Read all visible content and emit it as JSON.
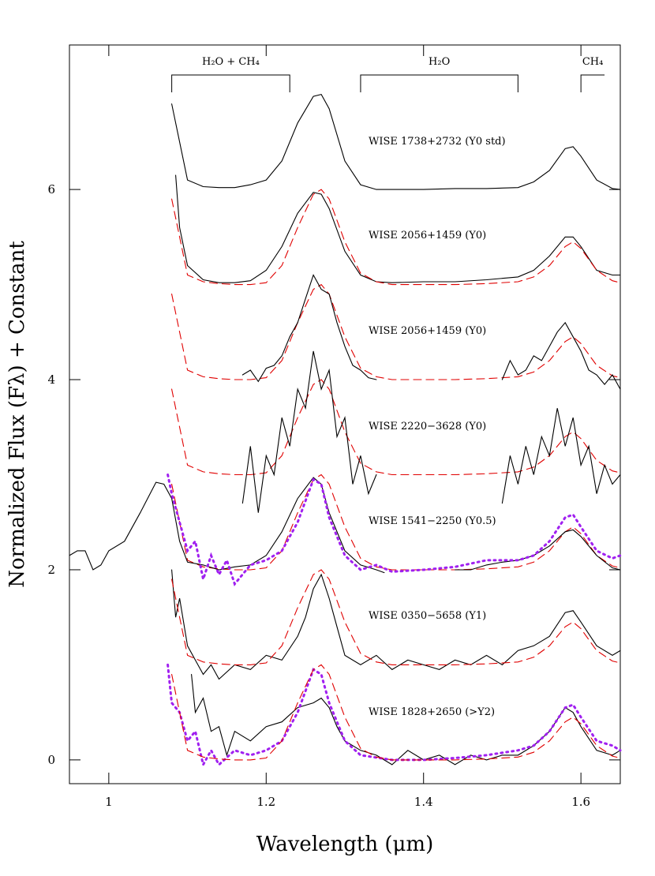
{
  "chart_data": {
    "type": "line",
    "xlabel": "Wavelength (μm)",
    "ylabel": "Normalized Flux (Fλ) + Constant",
    "xlim": [
      0.95,
      1.65
    ],
    "ylim": [
      -0.25,
      7.52
    ],
    "xticks": [
      1,
      1.2,
      1.4,
      1.6
    ],
    "yticks": [
      0,
      2,
      4,
      6
    ],
    "bands": [
      {
        "label": "H₂O + CH₄",
        "range": [
          1.08,
          1.23
        ]
      },
      {
        "label": "H₂O",
        "range": [
          1.32,
          1.52
        ]
      },
      {
        "label": "CH₄",
        "range": [
          1.6,
          1.63
        ]
      }
    ],
    "labels": [
      "WISE 1738+2732 (Y0 std)",
      "WISE 2056+1459 (Y0)",
      "WISE 2056+1459 (Y0)",
      "WISE 2220−3628 (Y0)",
      "WISE 1541−2250 (Y0.5)",
      "WISE 0350−5658 (Y1)",
      "WISE 1828+2650 (>Y2)"
    ],
    "series": [
      {
        "color": "#000000",
        "style": "solid",
        "x": [
          1.08,
          1.09,
          1.1,
          1.12,
          1.14,
          1.16,
          1.18,
          1.2,
          1.22,
          1.24,
          1.26,
          1.27,
          1.28,
          1.3,
          1.32,
          1.34,
          1.36,
          1.4,
          1.44,
          1.48,
          1.52,
          1.54,
          1.56,
          1.58,
          1.59,
          1.6,
          1.62,
          1.64,
          1.65
        ],
        "values": [
          6.9,
          6.5,
          6.1,
          6.03,
          6.02,
          6.02,
          6.05,
          6.1,
          6.3,
          6.7,
          6.98,
          7.0,
          6.85,
          6.3,
          6.05,
          6.0,
          6.0,
          6.0,
          6.01,
          6.01,
          6.02,
          6.08,
          6.2,
          6.43,
          6.45,
          6.35,
          6.1,
          6.01,
          6.0
        ]
      },
      {
        "color": "#000000",
        "style": "solid",
        "x": [
          1.085,
          1.09,
          1.1,
          1.12,
          1.14,
          1.16,
          1.18,
          1.2,
          1.22,
          1.24,
          1.26,
          1.27,
          1.28,
          1.3,
          1.32,
          1.34,
          1.36,
          1.4,
          1.44,
          1.48,
          1.52,
          1.54,
          1.56,
          1.58,
          1.59,
          1.6,
          1.62,
          1.64,
          1.65
        ],
        "values": [
          6.15,
          5.6,
          5.2,
          5.05,
          5.02,
          5.02,
          5.04,
          5.15,
          5.4,
          5.75,
          5.97,
          5.95,
          5.8,
          5.35,
          5.1,
          5.03,
          5.02,
          5.03,
          5.03,
          5.05,
          5.08,
          5.15,
          5.3,
          5.5,
          5.5,
          5.4,
          5.15,
          5.1,
          5.1
        ]
      },
      {
        "color": "#e00000",
        "style": "dashed",
        "x": [
          1.08,
          1.09,
          1.1,
          1.12,
          1.14,
          1.16,
          1.18,
          1.2,
          1.22,
          1.24,
          1.26,
          1.27,
          1.28,
          1.3,
          1.32,
          1.34,
          1.36,
          1.4,
          1.44,
          1.48,
          1.52,
          1.54,
          1.56,
          1.58,
          1.59,
          1.6,
          1.62,
          1.64,
          1.65
        ],
        "values": [
          5.9,
          5.5,
          5.1,
          5.03,
          5.01,
          5.0,
          5.0,
          5.02,
          5.2,
          5.6,
          5.95,
          6.0,
          5.9,
          5.45,
          5.12,
          5.03,
          5.0,
          5.0,
          5.0,
          5.01,
          5.03,
          5.08,
          5.2,
          5.4,
          5.45,
          5.38,
          5.15,
          5.04,
          5.02
        ]
      },
      {
        "color": "#e00000",
        "style": "dashed",
        "x": [
          1.08,
          1.09,
          1.1,
          1.12,
          1.14,
          1.16,
          1.18,
          1.2,
          1.22,
          1.24,
          1.26,
          1.27,
          1.28,
          1.3,
          1.32,
          1.34,
          1.36,
          1.4,
          1.44,
          1.48,
          1.52,
          1.54,
          1.56,
          1.58,
          1.59,
          1.6,
          1.62,
          1.64,
          1.65
        ],
        "values": [
          4.9,
          4.5,
          4.1,
          4.03,
          4.01,
          4.0,
          4.0,
          4.02,
          4.2,
          4.6,
          4.95,
          5.0,
          4.9,
          4.45,
          4.12,
          4.03,
          4.0,
          4.0,
          4.0,
          4.01,
          4.03,
          4.08,
          4.2,
          4.4,
          4.45,
          4.38,
          4.15,
          4.04,
          4.02
        ]
      },
      {
        "color": "#000000",
        "style": "solid",
        "x": [
          1.17,
          1.18,
          1.19,
          1.2,
          1.21,
          1.22,
          1.23,
          1.24,
          1.25,
          1.26,
          1.27,
          1.28,
          1.29,
          1.3,
          1.31,
          1.32,
          1.33,
          1.34,
          1.42,
          1.5,
          1.51,
          1.52,
          1.53,
          1.54,
          1.55,
          1.56,
          1.57,
          1.58,
          1.59,
          1.6,
          1.61,
          1.62,
          1.63,
          1.64,
          1.65
        ],
        "values": [
          4.05,
          4.1,
          3.98,
          4.12,
          4.15,
          4.25,
          4.45,
          4.6,
          4.85,
          5.1,
          4.95,
          4.9,
          4.6,
          4.35,
          4.15,
          4.1,
          4.02,
          4.0,
          null,
          4.0,
          4.2,
          4.05,
          4.1,
          4.25,
          4.2,
          4.35,
          4.5,
          4.6,
          4.45,
          4.3,
          4.1,
          4.05,
          3.95,
          4.05,
          3.9
        ]
      },
      {
        "color": "#e00000",
        "style": "dashed",
        "x": [
          1.08,
          1.09,
          1.1,
          1.12,
          1.14,
          1.16,
          1.18,
          1.2,
          1.22,
          1.24,
          1.26,
          1.27,
          1.28,
          1.3,
          1.32,
          1.34,
          1.36,
          1.4,
          1.44,
          1.48,
          1.52,
          1.54,
          1.56,
          1.58,
          1.59,
          1.6,
          1.62,
          1.64,
          1.65
        ],
        "values": [
          3.9,
          3.5,
          3.1,
          3.03,
          3.01,
          3.0,
          3.0,
          3.02,
          3.2,
          3.6,
          3.95,
          4.0,
          3.9,
          3.45,
          3.12,
          3.03,
          3.0,
          3.0,
          3.0,
          3.01,
          3.03,
          3.08,
          3.2,
          3.4,
          3.45,
          3.38,
          3.15,
          3.04,
          3.02
        ]
      },
      {
        "color": "#000000",
        "style": "solid",
        "x": [
          1.17,
          1.18,
          1.19,
          1.2,
          1.21,
          1.22,
          1.23,
          1.24,
          1.25,
          1.26,
          1.27,
          1.28,
          1.29,
          1.3,
          1.31,
          1.32,
          1.33,
          1.34,
          1.42,
          1.5,
          1.51,
          1.52,
          1.53,
          1.54,
          1.55,
          1.56,
          1.57,
          1.58,
          1.59,
          1.6,
          1.61,
          1.62,
          1.63,
          1.64,
          1.65
        ],
        "values": [
          2.7,
          3.3,
          2.6,
          3.2,
          3.0,
          3.6,
          3.3,
          3.9,
          3.7,
          4.3,
          3.9,
          4.1,
          3.4,
          3.6,
          2.9,
          3.2,
          2.8,
          3.0,
          null,
          2.7,
          3.2,
          2.9,
          3.3,
          3.0,
          3.4,
          3.2,
          3.7,
          3.3,
          3.6,
          3.1,
          3.3,
          2.8,
          3.1,
          2.9,
          3.0
        ]
      },
      {
        "color": "#e00000",
        "style": "dashed",
        "x": [
          1.08,
          1.09,
          1.1,
          1.12,
          1.14,
          1.16,
          1.18,
          1.2,
          1.22,
          1.24,
          1.26,
          1.27,
          1.28,
          1.3,
          1.32,
          1.34,
          1.36,
          1.4,
          1.44,
          1.48,
          1.52,
          1.54,
          1.56,
          1.58,
          1.59,
          1.6,
          1.62,
          1.64,
          1.65
        ],
        "values": [
          2.9,
          2.5,
          2.1,
          2.03,
          2.01,
          2.0,
          2.0,
          2.02,
          2.2,
          2.6,
          2.95,
          3.0,
          2.9,
          2.45,
          2.12,
          2.03,
          2.0,
          2.0,
          2.0,
          2.01,
          2.03,
          2.08,
          2.2,
          2.4,
          2.45,
          2.38,
          2.15,
          2.04,
          2.02
        ]
      },
      {
        "color": "#000000",
        "style": "solid",
        "x": [
          0.95,
          0.96,
          0.97,
          0.98,
          0.99,
          1.0,
          1.02,
          1.04,
          1.06,
          1.07,
          1.08,
          1.09,
          1.1,
          1.12,
          1.14,
          1.16,
          1.18,
          1.2,
          1.22,
          1.24,
          1.26,
          1.27,
          1.28,
          1.3,
          1.32,
          1.34,
          1.35,
          1.4,
          1.44,
          1.46,
          1.48,
          1.5,
          1.52,
          1.54,
          1.56,
          1.58,
          1.59,
          1.6,
          1.62,
          1.64,
          1.65
        ],
        "values": [
          2.15,
          2.2,
          2.2,
          2.0,
          2.05,
          2.2,
          2.3,
          2.6,
          2.92,
          2.9,
          2.75,
          2.3,
          2.08,
          2.05,
          2.0,
          2.03,
          2.05,
          2.15,
          2.4,
          2.75,
          2.97,
          2.9,
          2.6,
          2.2,
          2.05,
          2.0,
          1.97,
          null,
          2.0,
          2.0,
          2.05,
          2.08,
          2.1,
          2.15,
          2.25,
          2.4,
          2.42,
          2.35,
          2.15,
          2.02,
          2.0
        ]
      },
      {
        "color": "#a020f0",
        "style": "dotted",
        "x": [
          1.075,
          1.08,
          1.09,
          1.1,
          1.11,
          1.12,
          1.13,
          1.14,
          1.15,
          1.16,
          1.18,
          1.2,
          1.22,
          1.24,
          1.26,
          1.27,
          1.28,
          1.3,
          1.32,
          1.34,
          1.36,
          1.4,
          1.44,
          1.48,
          1.52,
          1.54,
          1.56,
          1.58,
          1.59,
          1.6,
          1.62,
          1.64,
          1.65
        ],
        "values": [
          3.0,
          2.8,
          2.5,
          2.2,
          2.3,
          1.9,
          2.15,
          1.95,
          2.1,
          1.85,
          2.05,
          2.1,
          2.2,
          2.5,
          2.95,
          2.9,
          2.55,
          2.15,
          2.0,
          2.05,
          1.98,
          2.0,
          2.03,
          2.1,
          2.1,
          2.15,
          2.3,
          2.55,
          2.58,
          2.45,
          2.2,
          2.12,
          2.15
        ]
      },
      {
        "color": "#000000",
        "style": "solid",
        "x": [
          1.08,
          1.085,
          1.09,
          1.1,
          1.11,
          1.12,
          1.13,
          1.14,
          1.16,
          1.18,
          1.2,
          1.22,
          1.24,
          1.25,
          1.26,
          1.27,
          1.28,
          1.29,
          1.3,
          1.32,
          1.34,
          1.36,
          1.38,
          1.4,
          1.42,
          1.44,
          1.46,
          1.48,
          1.5,
          1.52,
          1.54,
          1.56,
          1.58,
          1.59,
          1.6,
          1.62,
          1.64,
          1.65
        ],
        "values": [
          2.0,
          1.5,
          1.7,
          1.2,
          1.05,
          0.9,
          1.0,
          0.85,
          1.0,
          0.95,
          1.1,
          1.05,
          1.3,
          1.5,
          1.8,
          1.95,
          1.7,
          1.4,
          1.1,
          1.0,
          1.1,
          0.95,
          1.05,
          1.0,
          0.95,
          1.05,
          1.0,
          1.1,
          1.0,
          1.15,
          1.2,
          1.3,
          1.55,
          1.57,
          1.45,
          1.2,
          1.1,
          1.15
        ]
      },
      {
        "color": "#e00000",
        "style": "dashed",
        "x": [
          1.08,
          1.09,
          1.1,
          1.12,
          1.14,
          1.16,
          1.18,
          1.2,
          1.22,
          1.24,
          1.26,
          1.27,
          1.28,
          1.3,
          1.32,
          1.34,
          1.36,
          1.4,
          1.44,
          1.48,
          1.52,
          1.54,
          1.56,
          1.58,
          1.59,
          1.6,
          1.62,
          1.64,
          1.65
        ],
        "values": [
          1.9,
          1.5,
          1.1,
          1.03,
          1.01,
          1.0,
          1.0,
          1.02,
          1.2,
          1.6,
          1.95,
          2.0,
          1.9,
          1.45,
          1.12,
          1.03,
          1.0,
          1.0,
          1.0,
          1.01,
          1.03,
          1.08,
          1.2,
          1.4,
          1.45,
          1.38,
          1.15,
          1.04,
          1.02
        ]
      },
      {
        "color": "#000000",
        "style": "solid",
        "x": [
          1.105,
          1.11,
          1.12,
          1.13,
          1.14,
          1.15,
          1.16,
          1.18,
          1.2,
          1.22,
          1.24,
          1.26,
          1.27,
          1.28,
          1.29,
          1.3,
          1.32,
          1.34,
          1.36,
          1.38,
          1.4,
          1.42,
          1.44,
          1.46,
          1.48,
          1.5,
          1.52,
          1.54,
          1.56,
          1.58,
          1.59,
          1.6,
          1.62,
          1.64,
          1.65
        ],
        "values": [
          0.9,
          0.5,
          0.65,
          0.3,
          0.35,
          0.05,
          0.3,
          0.2,
          0.35,
          0.4,
          0.55,
          0.6,
          0.65,
          0.55,
          0.35,
          0.2,
          0.1,
          0.05,
          -0.05,
          0.1,
          0.0,
          0.05,
          -0.05,
          0.05,
          0.0,
          0.05,
          0.05,
          0.15,
          0.3,
          0.55,
          0.5,
          0.35,
          0.1,
          0.05,
          0.1
        ]
      },
      {
        "color": "#a020f0",
        "style": "dotted",
        "x": [
          1.075,
          1.08,
          1.09,
          1.1,
          1.11,
          1.12,
          1.13,
          1.14,
          1.16,
          1.18,
          1.2,
          1.22,
          1.24,
          1.26,
          1.27,
          1.28,
          1.3,
          1.32,
          1.36,
          1.4,
          1.44,
          1.48,
          1.52,
          1.54,
          1.56,
          1.58,
          1.59,
          1.6,
          1.62,
          1.64,
          1.65
        ],
        "values": [
          1.0,
          0.6,
          0.5,
          0.2,
          0.3,
          -0.05,
          0.1,
          -0.05,
          0.1,
          0.05,
          0.1,
          0.2,
          0.5,
          0.95,
          0.9,
          0.6,
          0.2,
          0.05,
          0.0,
          0.0,
          0.02,
          0.05,
          0.1,
          0.15,
          0.3,
          0.55,
          0.58,
          0.45,
          0.2,
          0.15,
          0.1
        ]
      },
      {
        "color": "#e00000",
        "style": "dashed",
        "x": [
          1.08,
          1.09,
          1.1,
          1.12,
          1.14,
          1.16,
          1.18,
          1.2,
          1.22,
          1.24,
          1.26,
          1.27,
          1.28,
          1.3,
          1.32,
          1.34,
          1.36,
          1.4,
          1.44,
          1.48,
          1.52,
          1.54,
          1.56,
          1.58,
          1.59,
          1.6,
          1.62,
          1.64,
          1.65
        ],
        "values": [
          0.9,
          0.5,
          0.1,
          0.03,
          0.01,
          0.0,
          0.0,
          0.02,
          0.2,
          0.6,
          0.95,
          1.0,
          0.9,
          0.45,
          0.12,
          0.03,
          0.0,
          0.0,
          0.0,
          0.01,
          0.03,
          0.08,
          0.2,
          0.4,
          0.45,
          0.38,
          0.15,
          0.04,
          0.02
        ]
      }
    ]
  }
}
